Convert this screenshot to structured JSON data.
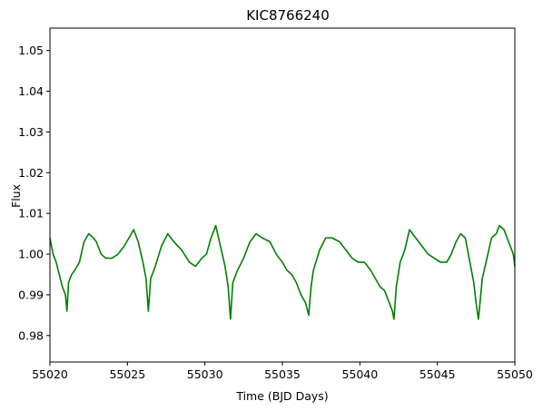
{
  "chart_data": {
    "type": "line",
    "title": "KIC8766240",
    "xlabel": "Time (BJD Days)",
    "ylabel": "Flux",
    "xlim": [
      55020,
      55050
    ],
    "ylim": [
      0.9735,
      1.0555
    ],
    "xticks": [
      55020,
      55025,
      55030,
      55035,
      55040,
      55045,
      55050
    ],
    "yticks": [
      0.98,
      0.99,
      1.0,
      1.01,
      1.02,
      1.03,
      1.04,
      1.05
    ],
    "grid": false,
    "series": [
      {
        "color": "#008000",
        "x": [
          55020.0,
          55020.2,
          55020.4,
          55020.6,
          55020.8,
          55021.0,
          55021.1,
          55021.2,
          55021.4,
          55021.6,
          55021.9,
          55022.2,
          55022.5,
          55022.8,
          55023.0,
          55023.3,
          55023.6,
          55024.0,
          55024.4,
          55024.8,
          55025.1,
          55025.4,
          55025.7,
          55026.0,
          55026.2,
          55026.35,
          55026.5,
          55026.8,
          55027.2,
          55027.6,
          55028.0,
          55028.5,
          55029.0,
          55029.4,
          55029.8,
          55030.1,
          55030.4,
          55030.7,
          55031.0,
          55031.3,
          55031.5,
          55031.65,
          55031.8,
          55032.1,
          55032.5,
          55032.9,
          55033.3,
          55033.7,
          55034.2,
          55034.6,
          55035.0,
          55035.3,
          55035.6,
          55035.9,
          55036.2,
          55036.5,
          55036.7,
          55036.85,
          55037.0,
          55037.4,
          55037.8,
          55038.2,
          55038.7,
          55039.1,
          55039.5,
          55039.9,
          55040.3,
          55040.7,
          55041.0,
          55041.3,
          55041.6,
          55041.9,
          55042.1,
          55042.2,
          55042.35,
          55042.6,
          55042.9,
          55043.2,
          55043.6,
          55044.0,
          55044.4,
          55044.8,
          55045.2,
          55045.6,
          55045.9,
          55046.2,
          55046.5,
          55046.8,
          55047.1,
          55047.35,
          55047.5,
          55047.65,
          55047.9,
          55048.2,
          55048.5,
          55048.8,
          55049.0,
          55049.3,
          55049.6,
          55049.9,
          55050.0
        ],
        "y": [
          1.004,
          1.0,
          0.998,
          0.995,
          0.992,
          0.99,
          0.986,
          0.993,
          0.995,
          0.996,
          0.998,
          1.003,
          1.005,
          1.004,
          1.003,
          1.0,
          0.999,
          0.999,
          1.0,
          1.002,
          1.004,
          1.006,
          1.003,
          0.998,
          0.994,
          0.986,
          0.994,
          0.997,
          1.002,
          1.005,
          1.003,
          1.001,
          0.998,
          0.997,
          0.999,
          1.0,
          1.004,
          1.007,
          1.002,
          0.997,
          0.992,
          0.984,
          0.993,
          0.996,
          0.999,
          1.003,
          1.005,
          1.004,
          1.003,
          1.0,
          0.998,
          0.996,
          0.995,
          0.993,
          0.99,
          0.988,
          0.985,
          0.992,
          0.996,
          1.001,
          1.004,
          1.004,
          1.003,
          1.001,
          0.999,
          0.998,
          0.998,
          0.996,
          0.994,
          0.992,
          0.991,
          0.988,
          0.986,
          0.984,
          0.992,
          0.998,
          1.001,
          1.006,
          1.004,
          1.002,
          1.0,
          0.999,
          0.998,
          0.998,
          1.0,
          1.003,
          1.005,
          1.004,
          0.998,
          0.993,
          0.988,
          0.984,
          0.994,
          0.999,
          1.004,
          1.005,
          1.007,
          1.006,
          1.003,
          1.0,
          0.997
        ]
      }
    ]
  }
}
